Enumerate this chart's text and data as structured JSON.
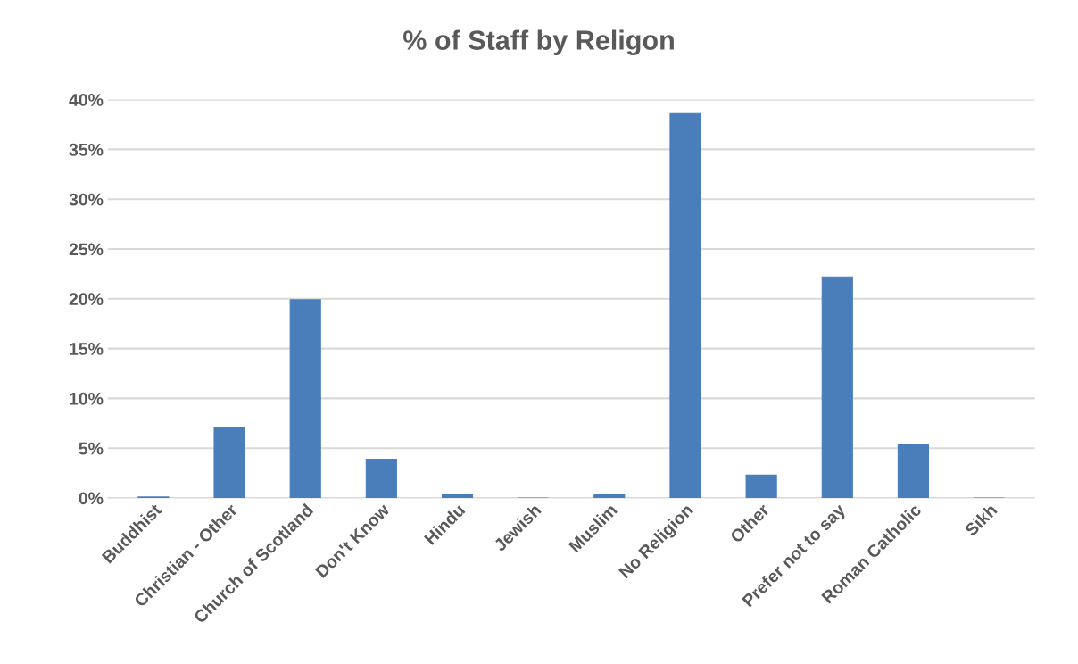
{
  "chart_data": {
    "type": "bar",
    "title": "% of Staff by Religon",
    "categories": [
      "Buddhist",
      "Christian - Other",
      "Church of Scotland",
      "Don't Know",
      "Hindu",
      "Jewish",
      "Muslim",
      "No Religion",
      "Other",
      "Prefer not to say",
      "Roman Catholic",
      "Sikh"
    ],
    "values": [
      0.1,
      7.1,
      19.9,
      3.9,
      0.4,
      0,
      0.3,
      38.6,
      2.3,
      22.2,
      5.4,
      0
    ],
    "color": "#4a7ebb",
    "ylim": [
      0,
      40
    ],
    "yticks": [
      {
        "value": 0,
        "label": "0%"
      },
      {
        "value": 5,
        "label": "5%"
      },
      {
        "value": 10,
        "label": "10%"
      },
      {
        "value": 15,
        "label": "15%"
      },
      {
        "value": 20,
        "label": "20%"
      },
      {
        "value": 25,
        "label": "25%"
      },
      {
        "value": 30,
        "label": "30%"
      },
      {
        "value": 35,
        "label": "35%"
      },
      {
        "value": 40,
        "label": "40%"
      }
    ],
    "grid": "y",
    "legend": false
  }
}
